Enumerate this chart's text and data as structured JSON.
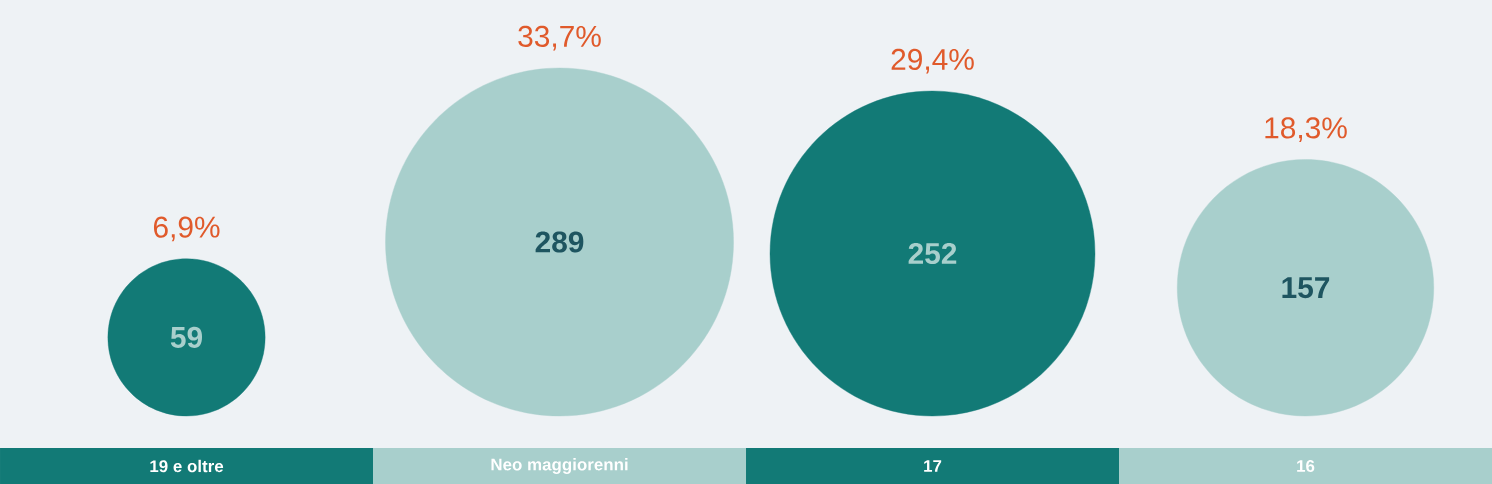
{
  "chart_data": {
    "type": "other",
    "categories": [
      "19 e oltre",
      "Neo maggiorenni",
      "17",
      "16"
    ],
    "series": [
      {
        "values": [
          59,
          289,
          252,
          157
        ],
        "colors": [
          "#127a76",
          "#a8cfcc",
          "#127a76",
          "#a8cfcc"
        ],
        "value_labels": [
          "59",
          "289",
          "252",
          "157"
        ]
      },
      {
        "values": [
          6.9,
          33.7,
          29.4,
          18.3
        ],
        "color": "#e05a2b",
        "value_labels": [
          "6,9%",
          "33,7%",
          "29,4%",
          "18,3%"
        ]
      }
    ]
  }
}
